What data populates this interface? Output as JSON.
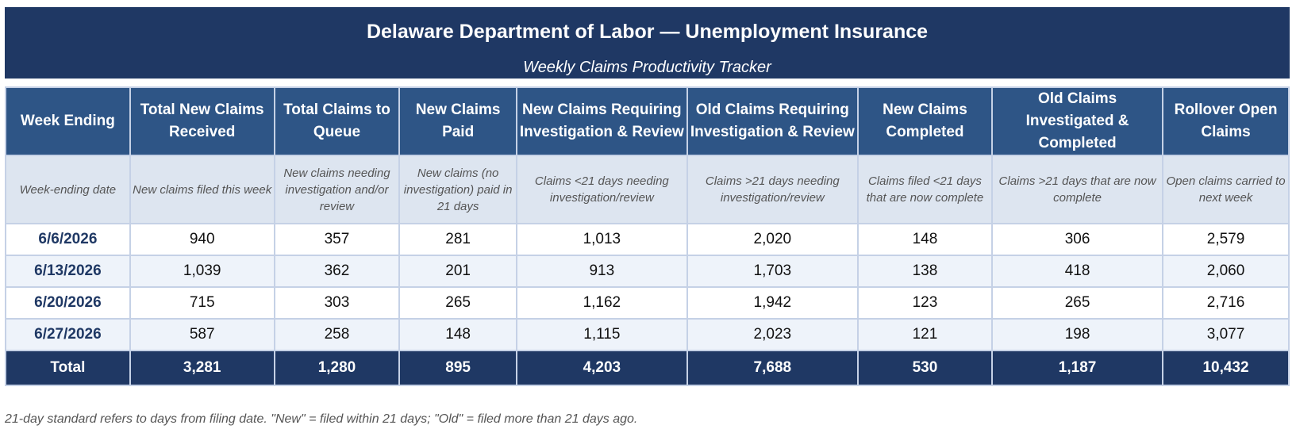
{
  "header": {
    "title": "Delaware Department of Labor — Unemployment Insurance",
    "subtitle": "Weekly Claims Productivity Tracker"
  },
  "table": {
    "columns": [
      {
        "key": "week",
        "label": "Week Ending",
        "description": "Week-ending date"
      },
      {
        "key": "total_new",
        "label": "Total New Claims Received",
        "description": "New claims filed this week"
      },
      {
        "key": "to_queue",
        "label": "Total Claims to Queue",
        "description": "New claims needing investigation and/or review"
      },
      {
        "key": "new_paid",
        "label": "New Claims Paid",
        "description": "New claims (no investigation) paid in 21 days"
      },
      {
        "key": "new_req",
        "label": "New Claims Requiring Investigation & Review",
        "description": "Claims <21 days needing investigation/review"
      },
      {
        "key": "old_req",
        "label": "Old Claims Requiring Investigation & Review",
        "description": "Claims >21 days needing investigation/review"
      },
      {
        "key": "new_completed",
        "label": "New Claims Completed",
        "description": "Claims filed <21 days that are now complete"
      },
      {
        "key": "old_completed",
        "label": "Old Claims Investigated & Completed",
        "description": "Claims >21 days that are now complete"
      },
      {
        "key": "rollover",
        "label": "Rollover Open Claims",
        "description": "Open claims carried to next week"
      }
    ],
    "rows": [
      [
        "6/6/2026",
        "940",
        "357",
        "281",
        "1,013",
        "2,020",
        "148",
        "306",
        "2,579"
      ],
      [
        "6/13/2026",
        "1,039",
        "362",
        "201",
        "913",
        "1,703",
        "138",
        "418",
        "2,060"
      ],
      [
        "6/20/2026",
        "715",
        "303",
        "265",
        "1,162",
        "1,942",
        "123",
        "265",
        "2,716"
      ],
      [
        "6/27/2026",
        "587",
        "258",
        "148",
        "1,115",
        "2,023",
        "121",
        "198",
        "3,077"
      ]
    ],
    "total": [
      "Total",
      "3,281",
      "1,280",
      "895",
      "4,203",
      "7,688",
      "530",
      "1,187",
      "10,432"
    ]
  },
  "footnote": "21-day standard refers to days from filing date. \"New\" = filed within 21 days; \"Old\" = filed more than 21 days ago.",
  "colors": {
    "banner": "#1f3864",
    "header_row": "#2e5586",
    "description_row": "#dde5f0",
    "alt_row": "#eef3fa",
    "total_row": "#1f3864",
    "grid": "#c5d1e6"
  }
}
